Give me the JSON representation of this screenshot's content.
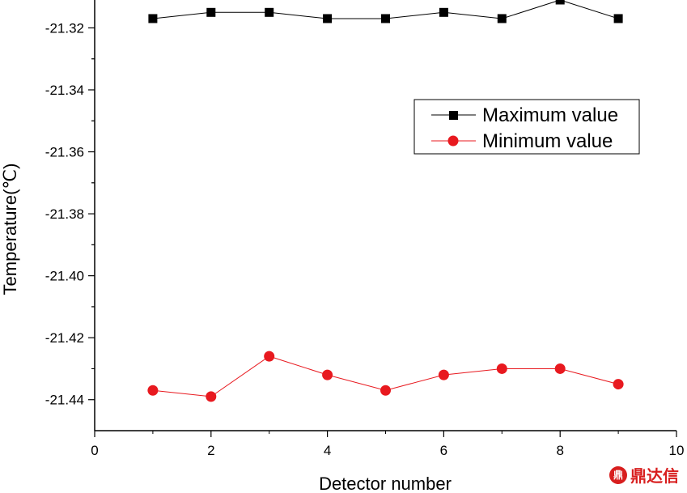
{
  "chart_data": {
    "type": "line",
    "title": "",
    "xlabel": "Detector number",
    "ylabel": "Temperature(℃)",
    "xlim": [
      0,
      10
    ],
    "ylim": [
      -21.45,
      -21.311
    ],
    "x_ticks": [
      0,
      2,
      4,
      6,
      8,
      10
    ],
    "y_ticks": [
      -21.32,
      -21.34,
      -21.36,
      -21.38,
      -21.4,
      -21.42,
      -21.44
    ],
    "x_tick_labels": [
      "0",
      "2",
      "4",
      "6",
      "8",
      "10"
    ],
    "y_tick_labels": [
      "-21.32",
      "-21.34",
      "-21.36",
      "-21.38",
      "-21.40",
      "-21.42",
      "-21.44"
    ],
    "grid": false,
    "legend_position": "upper-right",
    "x": [
      1,
      2,
      3,
      4,
      5,
      6,
      7,
      8,
      9
    ],
    "series": [
      {
        "name": "Maximum value",
        "color": "#000000",
        "marker": "square",
        "values": [
          -21.317,
          -21.315,
          -21.315,
          -21.317,
          -21.317,
          -21.315,
          -21.317,
          -21.311,
          -21.317
        ]
      },
      {
        "name": "Minimum value",
        "color": "#e8191f",
        "marker": "circle",
        "values": [
          -21.437,
          -21.439,
          -21.426,
          -21.432,
          -21.437,
          -21.432,
          -21.43,
          -21.43,
          -21.435
        ]
      }
    ]
  },
  "watermark": {
    "logo_text": "鼎",
    "text": "鼎达信"
  }
}
